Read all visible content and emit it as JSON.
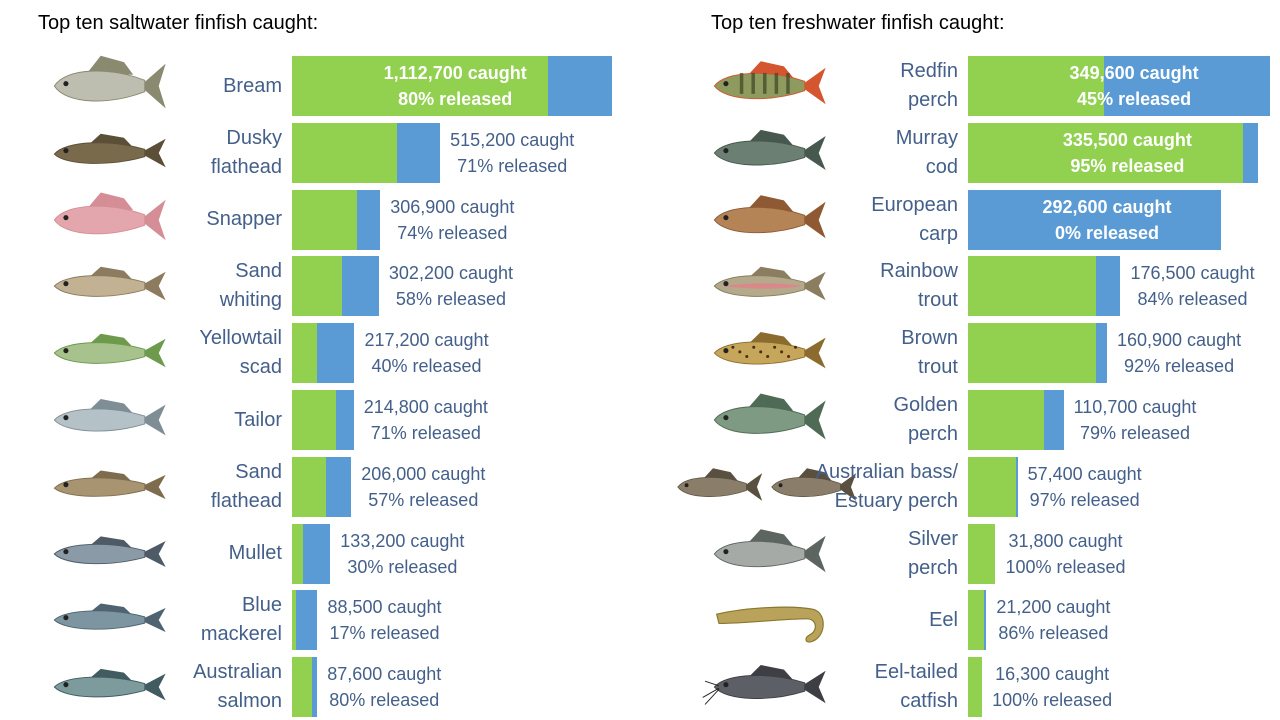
{
  "titles": {
    "saltwater": "Top ten saltwater finfish caught:",
    "freshwater": "Top ten freshwater finfish caught:"
  },
  "colors": {
    "released": "#92d050",
    "kept": "#5b9bd5",
    "label": "#44608a"
  },
  "chart_data": [
    {
      "type": "bar",
      "title": "Top ten saltwater finfish caught:",
      "orientation": "horizontal-stacked",
      "categories": [
        "Bream",
        "Dusky flathead",
        "Snapper",
        "Sand whiting",
        "Yellowtail scad",
        "Tailor",
        "Sand flathead",
        "Mullet",
        "Blue mackerel",
        "Australian salmon"
      ],
      "caught": [
        1112700,
        515200,
        306900,
        302200,
        217200,
        214800,
        206000,
        133200,
        88500,
        87600
      ],
      "released_pct": [
        80,
        71,
        74,
        58,
        40,
        71,
        57,
        30,
        17,
        80
      ],
      "items": [
        {
          "name_lines": [
            "Bream"
          ],
          "caught_label": "1,112,700 caught",
          "released_label": "80% released",
          "icon": "bream-icon"
        },
        {
          "name_lines": [
            "Dusky",
            "flathead"
          ],
          "caught_label": "515,200 caught",
          "released_label": "71% released",
          "icon": "dusky-flathead-icon"
        },
        {
          "name_lines": [
            "Snapper"
          ],
          "caught_label": "306,900 caught",
          "released_label": "74% released",
          "icon": "snapper-icon"
        },
        {
          "name_lines": [
            "Sand",
            "whiting"
          ],
          "caught_label": "302,200 caught",
          "released_label": "58% released",
          "icon": "sand-whiting-icon"
        },
        {
          "name_lines": [
            "Yellowtail",
            "scad"
          ],
          "caught_label": "217,200 caught",
          "released_label": "40% released",
          "icon": "yellowtail-scad-icon"
        },
        {
          "name_lines": [
            "Tailor"
          ],
          "caught_label": "214,800 caught",
          "released_label": "71% released",
          "icon": "tailor-icon"
        },
        {
          "name_lines": [
            "Sand",
            "flathead"
          ],
          "caught_label": "206,000 caught",
          "released_label": "57% released",
          "icon": "sand-flathead-icon"
        },
        {
          "name_lines": [
            "Mullet"
          ],
          "caught_label": "133,200 caught",
          "released_label": "30% released",
          "icon": "mullet-icon"
        },
        {
          "name_lines": [
            "Blue",
            "mackerel"
          ],
          "caught_label": "88,500 caught",
          "released_label": "17% released",
          "icon": "blue-mackerel-icon"
        },
        {
          "name_lines": [
            "Australian",
            "salmon"
          ],
          "caught_label": "87,600 caught",
          "released_label": "80% released",
          "icon": "australian-salmon-icon"
        }
      ]
    },
    {
      "type": "bar",
      "title": "Top ten freshwater finfish caught:",
      "orientation": "horizontal-stacked",
      "categories": [
        "Redfin perch",
        "Murray cod",
        "European carp",
        "Rainbow trout",
        "Brown trout",
        "Golden perch",
        "Australian bass/ Estuary perch",
        "Silver perch",
        "Eel",
        "Eel-tailed catfish"
      ],
      "caught": [
        349600,
        335500,
        292600,
        176500,
        160900,
        110700,
        57400,
        31800,
        21200,
        16300
      ],
      "released_pct": [
        45,
        95,
        0,
        84,
        92,
        79,
        97,
        100,
        86,
        100
      ],
      "items": [
        {
          "name_lines": [
            "Redfin",
            "perch"
          ],
          "caught_label": "349,600 caught",
          "released_label": "45% released",
          "icon": "redfin-perch-icon"
        },
        {
          "name_lines": [
            "Murray",
            "cod"
          ],
          "caught_label": "335,500 caught",
          "released_label": "95% released",
          "icon": "murray-cod-icon"
        },
        {
          "name_lines": [
            "European",
            "carp"
          ],
          "caught_label": "292,600 caught",
          "released_label": "0% released",
          "icon": "european-carp-icon"
        },
        {
          "name_lines": [
            "Rainbow",
            "trout"
          ],
          "caught_label": "176,500 caught",
          "released_label": "84% released",
          "icon": "rainbow-trout-icon"
        },
        {
          "name_lines": [
            "Brown",
            "trout"
          ],
          "caught_label": "160,900 caught",
          "released_label": "92% released",
          "icon": "brown-trout-icon"
        },
        {
          "name_lines": [
            "Golden",
            "perch"
          ],
          "caught_label": "110,700 caught",
          "released_label": "79% released",
          "icon": "golden-perch-icon"
        },
        {
          "name_lines": [
            "Australian bass/",
            "Estuary perch"
          ],
          "caught_label": "57,400 caught",
          "released_label": "97% released",
          "icon": "australian-bass-icon"
        },
        {
          "name_lines": [
            "Silver",
            "perch"
          ],
          "caught_label": "31,800 caught",
          "released_label": "100% released",
          "icon": "silver-perch-icon"
        },
        {
          "name_lines": [
            "Eel"
          ],
          "caught_label": "21,200 caught",
          "released_label": "86% released",
          "icon": "eel-icon"
        },
        {
          "name_lines": [
            "Eel-tailed",
            "catfish"
          ],
          "caught_label": "16,300 caught",
          "released_label": "100% released",
          "icon": "eel-tailed-catfish-icon"
        }
      ]
    }
  ]
}
